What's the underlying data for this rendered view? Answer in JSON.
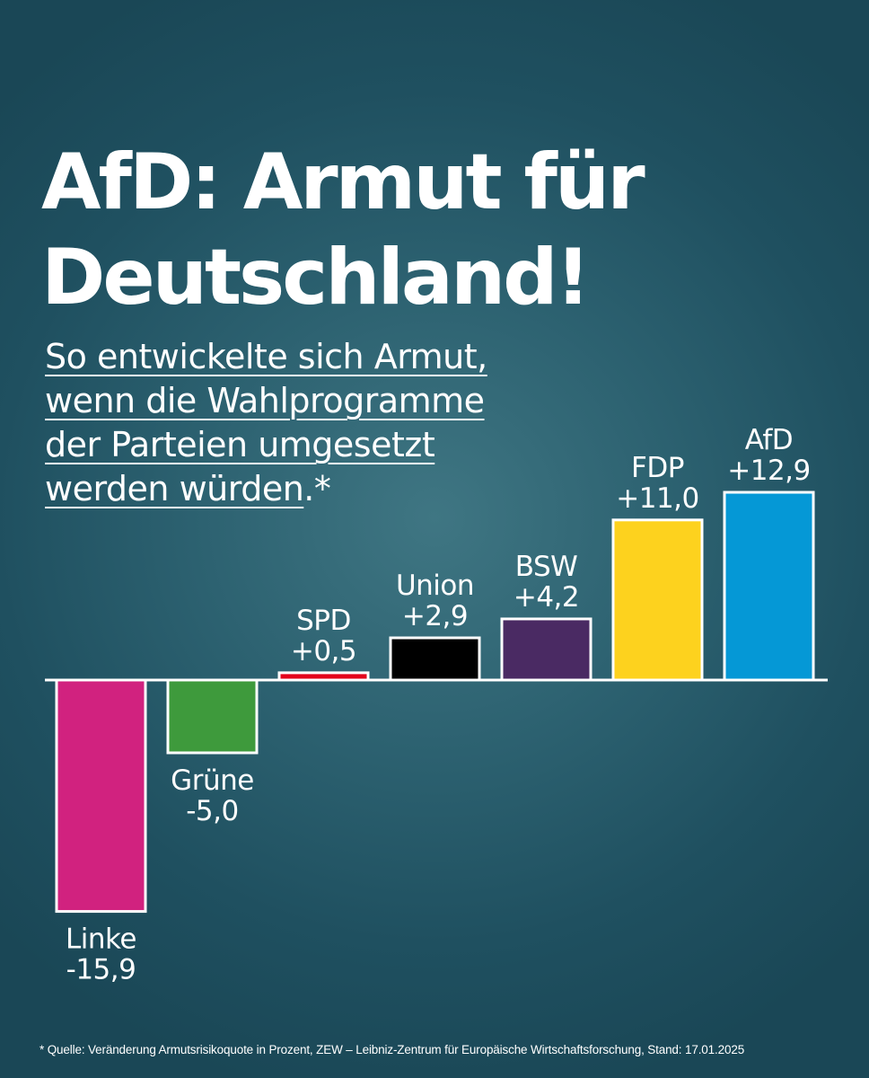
{
  "title_line1": "AfD: Armut für",
  "title_line2": "Deutschland!",
  "subtitle_line1": "So entwickelte sich Armut,",
  "subtitle_line2": "wenn die Wahlprogramme",
  "subtitle_line3": "der Parteien umgesetzt",
  "subtitle_line4": "werden würden",
  "subtitle_mark": ".*",
  "footnote": "* Quelle: Veränderung Armutsrisikoquote in Prozent, ZEW – Leibniz-Zentrum für Europäische Wirtschaftsforschung, Stand: 17.01.2025",
  "chart_data": {
    "type": "bar",
    "title": "",
    "xlabel": "",
    "ylabel": "",
    "categories": [
      "Linke",
      "Grüne",
      "SPD",
      "Union",
      "BSW",
      "FDP",
      "AfD"
    ],
    "values": [
      -15.9,
      -5.0,
      0.5,
      2.9,
      4.2,
      11.0,
      12.9
    ],
    "value_labels": [
      "-15,9",
      "-5,0",
      "+0,5",
      "+2,9",
      "+4,2",
      "+11,0",
      "+12,9"
    ],
    "colors": [
      "#d1227f",
      "#3e9a3c",
      "#e3001b",
      "#000000",
      "#4a2a63",
      "#fdd21e",
      "#0598d6"
    ],
    "bar_outline_color": "#ffffff",
    "baseline_color": "#ffffff",
    "grid": false,
    "legend": "none"
  }
}
